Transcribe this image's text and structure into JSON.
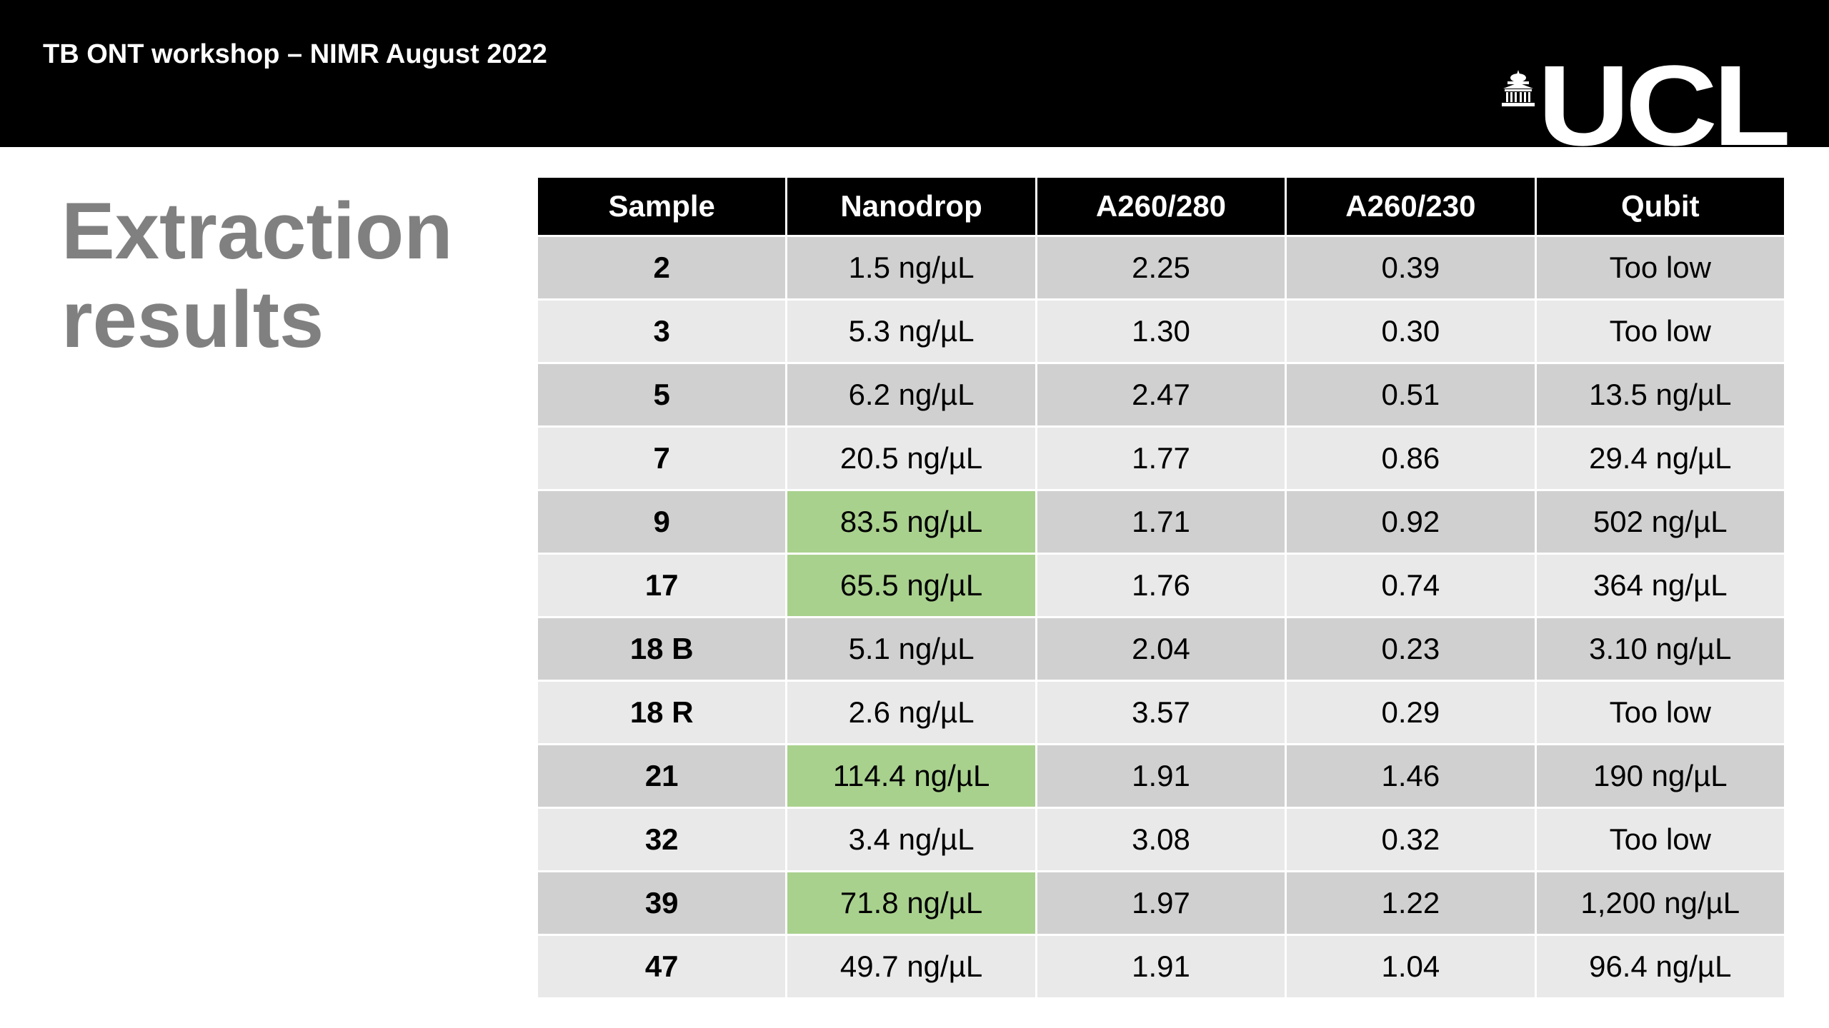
{
  "header": {
    "title": "TB ONT workshop – NIMR August 2022",
    "logo_text": "UCL",
    "logo_icon": "portico-icon"
  },
  "slide": {
    "title_line1": "Extraction",
    "title_line2": "results"
  },
  "colors": {
    "header_bg": "#000000",
    "title_gray": "#808080",
    "row_dark": "#d0d0d0",
    "row_light": "#e9e9e9",
    "highlight_green": "#a9d18e"
  },
  "table": {
    "headers": [
      "Sample",
      "Nanodrop",
      "A260/280",
      "A260/230",
      "Qubit"
    ],
    "rows": [
      {
        "sample": "2",
        "nanodrop": "1.5 ng/µL",
        "a260_280": "2.25",
        "a260_230": "0.39",
        "qubit": "Too low",
        "highlight": false
      },
      {
        "sample": "3",
        "nanodrop": "5.3 ng/µL",
        "a260_280": "1.30",
        "a260_230": "0.30",
        "qubit": "Too low",
        "highlight": false
      },
      {
        "sample": "5",
        "nanodrop": "6.2 ng/µL",
        "a260_280": "2.47",
        "a260_230": "0.51",
        "qubit": "13.5 ng/µL",
        "highlight": false
      },
      {
        "sample": "7",
        "nanodrop": "20.5 ng/µL",
        "a260_280": "1.77",
        "a260_230": "0.86",
        "qubit": "29.4 ng/µL",
        "highlight": false
      },
      {
        "sample": "9",
        "nanodrop": "83.5 ng/µL",
        "a260_280": "1.71",
        "a260_230": "0.92",
        "qubit": "502 ng/µL",
        "highlight": true
      },
      {
        "sample": "17",
        "nanodrop": "65.5 ng/µL",
        "a260_280": "1.76",
        "a260_230": "0.74",
        "qubit": "364 ng/µL",
        "highlight": true
      },
      {
        "sample": "18 B",
        "nanodrop": "5.1 ng/µL",
        "a260_280": "2.04",
        "a260_230": "0.23",
        "qubit": "3.10 ng/µL",
        "highlight": false
      },
      {
        "sample": "18 R",
        "nanodrop": "2.6 ng/µL",
        "a260_280": "3.57",
        "a260_230": "0.29",
        "qubit": "Too low",
        "highlight": false
      },
      {
        "sample": "21",
        "nanodrop": "114.4 ng/µL",
        "a260_280": "1.91",
        "a260_230": "1.46",
        "qubit": "190 ng/µL",
        "highlight": true
      },
      {
        "sample": "32",
        "nanodrop": "3.4 ng/µL",
        "a260_280": "3.08",
        "a260_230": "0.32",
        "qubit": "Too low",
        "highlight": false
      },
      {
        "sample": "39",
        "nanodrop": "71.8 ng/µL",
        "a260_280": "1.97",
        "a260_230": "1.22",
        "qubit": "1,200 ng/µL",
        "highlight": true
      },
      {
        "sample": "47",
        "nanodrop": "49.7 ng/µL",
        "a260_280": "1.91",
        "a260_230": "1.04",
        "qubit": "96.4 ng/µL",
        "highlight": false
      }
    ]
  }
}
